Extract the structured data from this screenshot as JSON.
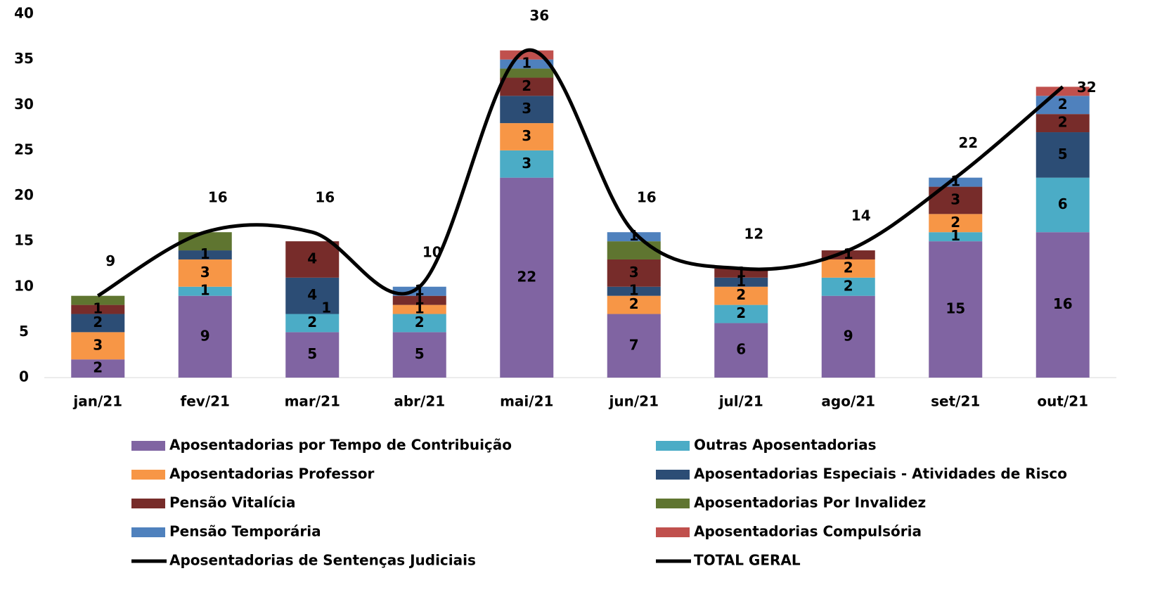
{
  "chart_data": {
    "type": "bar",
    "stacked": true,
    "categories": [
      "jan/21",
      "fev/21",
      "mar/21",
      "abr/21",
      "mai/21",
      "jun/21",
      "jul/21",
      "ago/21",
      "set/21",
      "out/21"
    ],
    "ylim": [
      0,
      40
    ],
    "yticks": [
      0,
      5,
      10,
      15,
      20,
      25,
      30,
      35,
      40
    ],
    "grid": false,
    "series": [
      {
        "name": "Aposentadorias por Tempo de Contribuição",
        "color": "#8064a2",
        "labels": true,
        "values": [
          2,
          9,
          5,
          5,
          22,
          7,
          6,
          9,
          15,
          16
        ]
      },
      {
        "name": "Outras Aposentadorias",
        "color": "#4bacc6",
        "labels": true,
        "values": [
          null,
          1,
          2,
          2,
          3,
          null,
          2,
          2,
          1,
          6
        ]
      },
      {
        "name": "Aposentadorias Professor",
        "color": "#f79646",
        "labels": true,
        "values": [
          3,
          3,
          null,
          1,
          3,
          2,
          2,
          2,
          2,
          null
        ]
      },
      {
        "name": "Aposentadorias Especiais - Atividades de Risco",
        "color": "#2c4d75",
        "labels": true,
        "values": [
          2,
          1,
          4,
          null,
          3,
          1,
          1,
          null,
          null,
          5
        ]
      },
      {
        "name": "Pensão Vitalícia",
        "color": "#772c2a",
        "labels": true,
        "values": [
          1,
          null,
          4,
          1,
          2,
          3,
          1,
          1,
          3,
          2
        ]
      },
      {
        "name": "Aposentadorias Por Invalidez",
        "color": "#5f7530",
        "labels": false,
        "values": [
          1,
          2,
          null,
          null,
          1,
          2,
          null,
          null,
          null,
          null
        ]
      },
      {
        "name": "Pensão Temporária",
        "color": "#4f81bd",
        "labels": true,
        "values": [
          null,
          null,
          null,
          1,
          1,
          1,
          null,
          null,
          1,
          2
        ]
      },
      {
        "name": "Aposentadorias Compulsória",
        "color": "#c0504d",
        "labels": false,
        "values": [
          null,
          null,
          null,
          null,
          1,
          null,
          null,
          null,
          null,
          1
        ]
      },
      {
        "name": "Aposentadorias de Sentenças Judiciais",
        "type": "line",
        "color": "#000000",
        "labels": true,
        "values": [
          null,
          null,
          1,
          null,
          null,
          null,
          null,
          null,
          null,
          null
        ]
      },
      {
        "name": "TOTAL GERAL",
        "type": "line",
        "smooth": true,
        "color": "#000000",
        "labels": true,
        "values": [
          9,
          16,
          16,
          10,
          36,
          16,
          12,
          14,
          22,
          32
        ]
      }
    ]
  }
}
